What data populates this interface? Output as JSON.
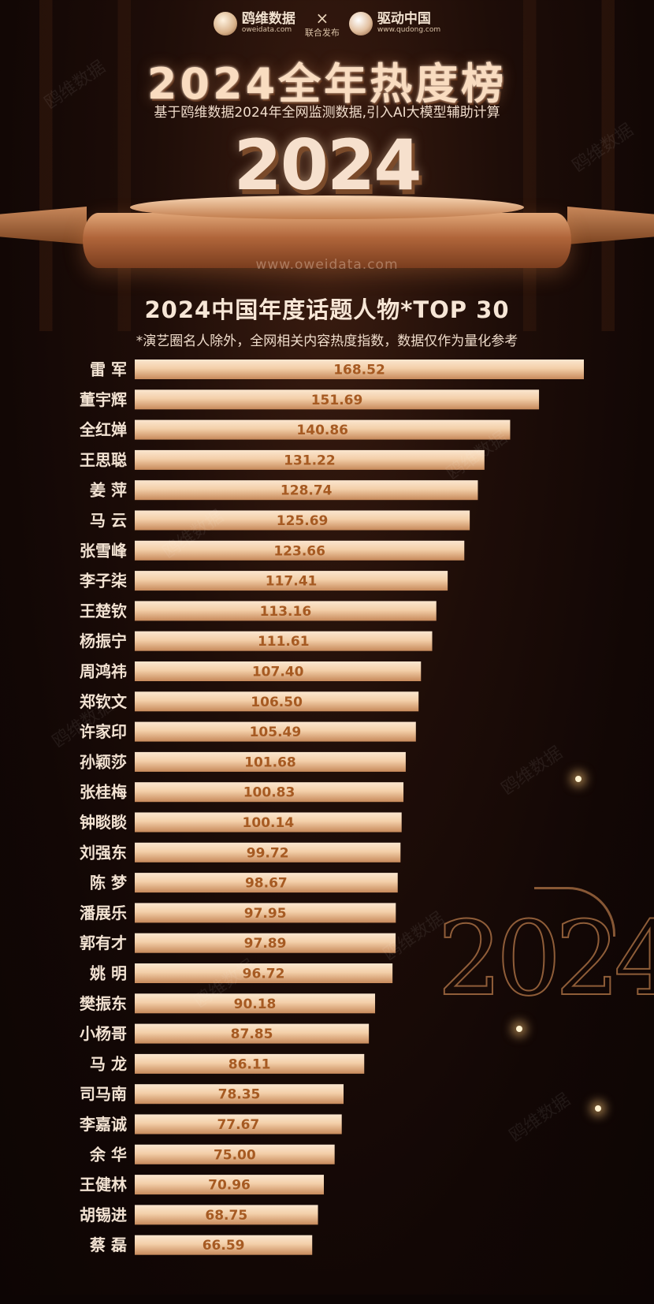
{
  "header": {
    "logo1_cn": "鸥维数据",
    "logo1_en": "oweidata.com",
    "cross": "×",
    "joint": "联合发布",
    "logo2_cn": "驱动中国",
    "logo2_en": "www.qudong.com"
  },
  "title": "2024全年热度榜",
  "subtitle": "基于鸥维数据2024年全网监测数据,引入AI大模型辅助计算",
  "big_year": "2024",
  "website": "www.oweidata.com",
  "watermark": "鸥维数据",
  "deco_year": "2024",
  "colors": {
    "background": "#160806",
    "bar_light": "#f8dcbf",
    "bar_dark": "#c78a5b",
    "value_text": "#a65a22",
    "name_text": "#f2e2d2"
  },
  "chart_data": {
    "type": "bar",
    "orientation": "horizontal",
    "title": "2024中国年度话题人物*TOP 30",
    "subtitle": "*演艺圈名人除外，全网相关内容热度指数，数据仅作为量化参考",
    "xlabel": "",
    "ylabel": "",
    "grid": false,
    "categories": [
      "雷 军",
      "董宇辉",
      "全红婵",
      "王思聪",
      "姜 萍",
      "马 云",
      "张雪峰",
      "李子柒",
      "王楚钦",
      "杨振宁",
      "周鸿祎",
      "郑钦文",
      "许家印",
      "孙颖莎",
      "张桂梅",
      "钟睒睒",
      "刘强东",
      "陈 梦",
      "潘展乐",
      "郭有才",
      "姚 明",
      "樊振东",
      "小杨哥",
      "马 龙",
      "司马南",
      "李嘉诚",
      "余 华",
      "王健林",
      "胡锡进",
      "蔡 磊"
    ],
    "values": [
      168.52,
      151.69,
      140.86,
      131.22,
      128.74,
      125.69,
      123.66,
      117.41,
      113.16,
      111.61,
      107.4,
      106.5,
      105.49,
      101.68,
      100.83,
      100.14,
      99.72,
      98.67,
      97.95,
      97.89,
      96.72,
      90.18,
      87.85,
      86.11,
      78.35,
      77.67,
      75.0,
      70.96,
      68.75,
      66.59
    ],
    "value_labels": [
      "168.52",
      "151.69",
      "140.86",
      "131.22",
      "128.74",
      "125.69",
      "123.66",
      "117.41",
      "113.16",
      "111.61",
      "107.40",
      "106.50",
      "105.49",
      "101.68",
      "100.83",
      "100.14",
      "99.72",
      "98.67",
      "97.95",
      "97.89",
      "96.72",
      "90.18",
      "87.85",
      "86.11",
      "78.35",
      "77.67",
      "75.00",
      "70.96",
      "68.75",
      "66.59"
    ]
  }
}
